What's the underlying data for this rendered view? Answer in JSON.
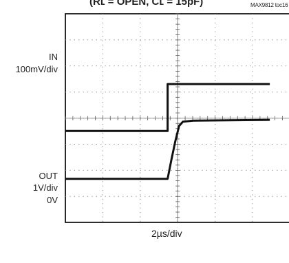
{
  "title": "(Rʟ = OPEN, Cʟ = 15pF)",
  "figure_id": "MAX9812 toc16",
  "chart_data": {
    "type": "line",
    "title": "(Rʟ = OPEN, Cʟ = 15pF)",
    "xlabel": "2µs/div",
    "ylabel": "",
    "x_unit": "µs",
    "xlim": [
      0,
      16
    ],
    "grid": true,
    "channels": [
      {
        "label": "IN",
        "scale": "100mV/div",
        "unit": "div",
        "points": [
          [
            0,
            3.5
          ],
          [
            8.0,
            3.5
          ],
          [
            8.0,
            5.3
          ],
          [
            16,
            5.3
          ]
        ]
      },
      {
        "label": "OUT",
        "scale": "1V/div",
        "ground_label": "0V",
        "unit": "div",
        "points": [
          [
            0,
            1.67
          ],
          [
            8.0,
            1.67
          ],
          [
            8.3,
            2.4
          ],
          [
            8.6,
            3.1
          ],
          [
            8.9,
            3.7
          ],
          [
            9.2,
            3.86
          ],
          [
            10.0,
            3.9
          ],
          [
            16,
            3.93
          ]
        ]
      }
    ]
  }
}
